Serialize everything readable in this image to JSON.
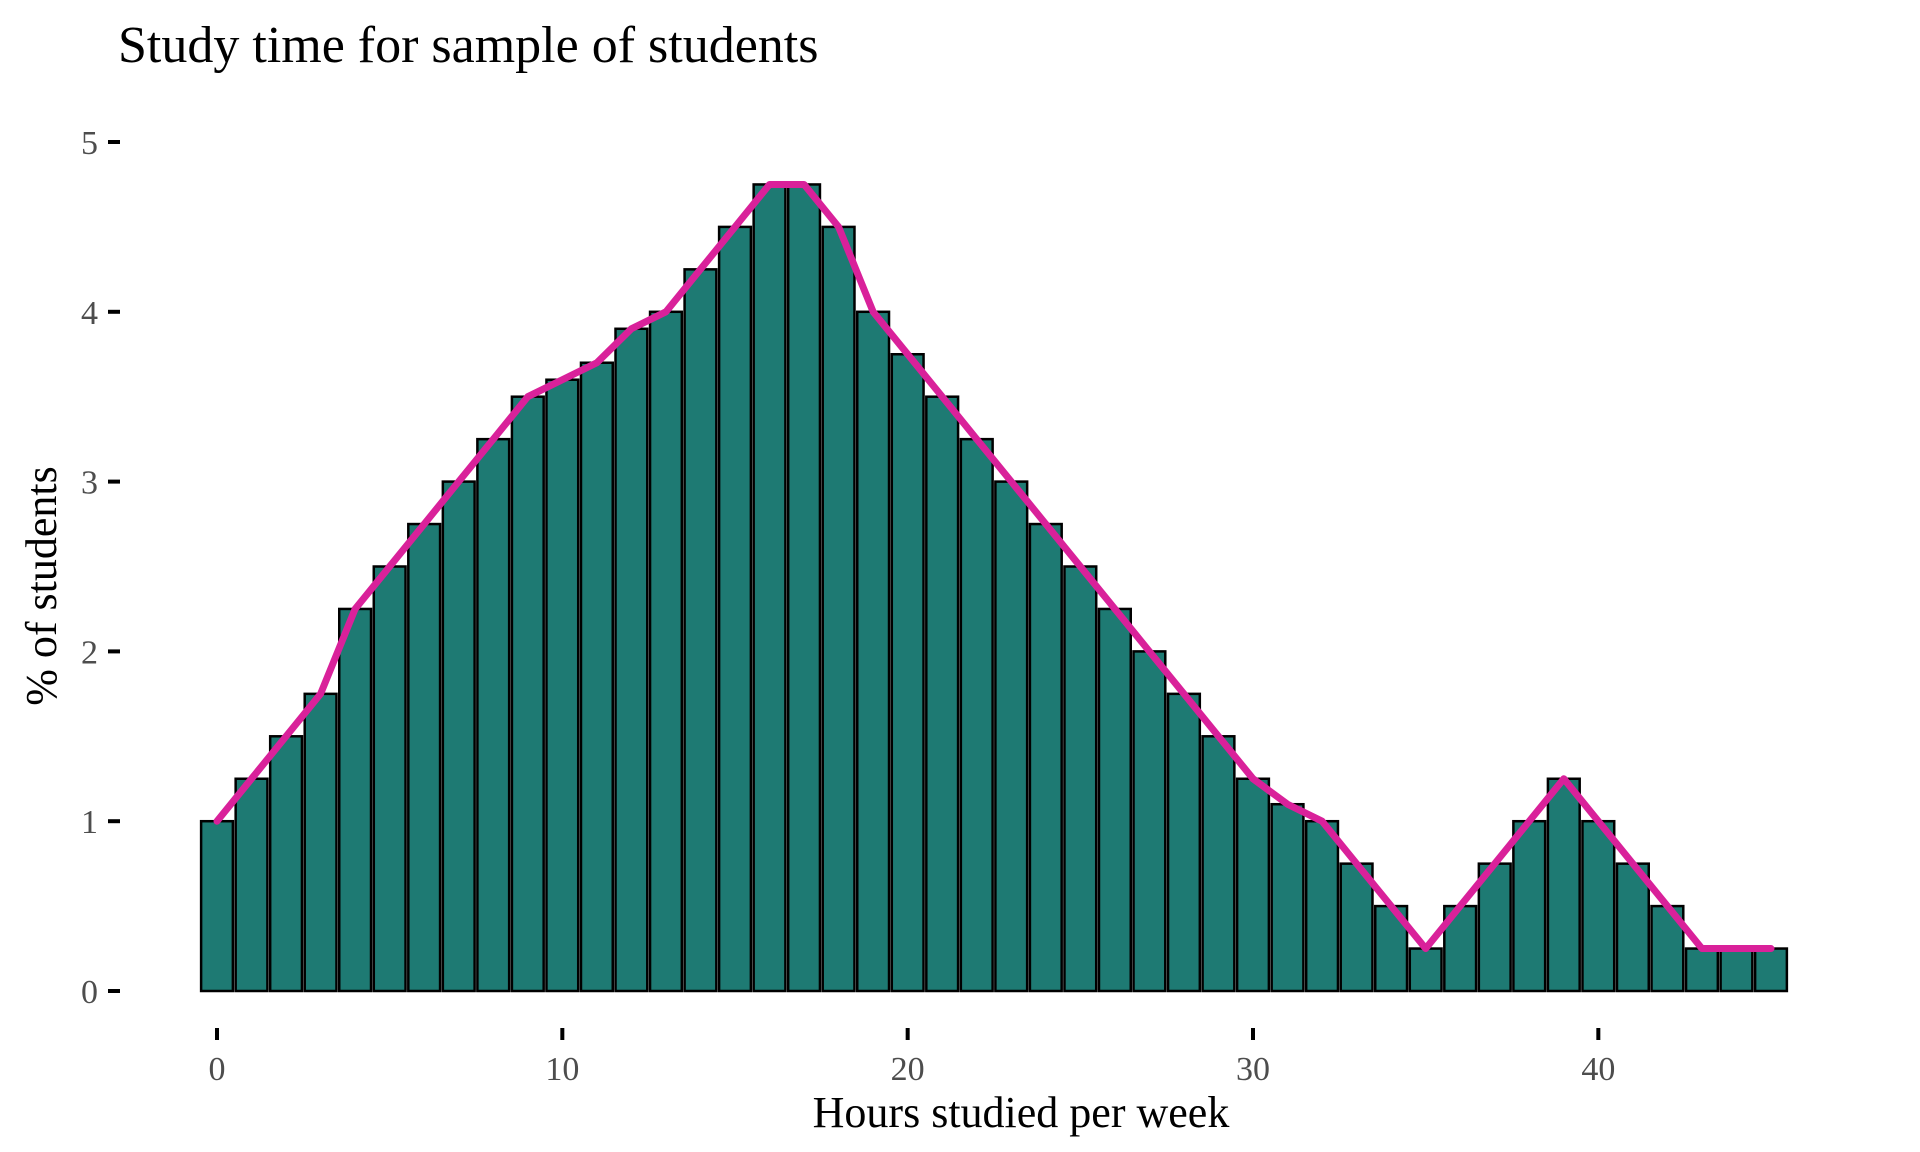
{
  "chart_data": {
    "type": "bar",
    "title": "Study time for sample of students",
    "xlabel": "Hours studied per week",
    "ylabel": "% of students",
    "x_ticks": [
      0,
      10,
      20,
      30,
      40
    ],
    "y_ticks": [
      0,
      1,
      2,
      3,
      4,
      5
    ],
    "xlim": [
      -0.5,
      45.5
    ],
    "ylim": [
      0,
      5
    ],
    "grid": false,
    "legend": "none",
    "colors": {
      "bar_fill": "#1e7a73",
      "bar_outline": "#000000",
      "line": "#d9219a"
    },
    "x": [
      0,
      1,
      2,
      3,
      4,
      5,
      6,
      7,
      8,
      9,
      10,
      11,
      12,
      13,
      14,
      15,
      16,
      17,
      18,
      19,
      20,
      21,
      22,
      23,
      24,
      25,
      26,
      27,
      28,
      29,
      30,
      31,
      32,
      33,
      34,
      35,
      36,
      37,
      38,
      39,
      40,
      41,
      42,
      43,
      44,
      45
    ],
    "values": [
      1.0,
      1.25,
      1.5,
      1.75,
      2.25,
      2.5,
      2.75,
      3.0,
      3.25,
      3.5,
      3.6,
      3.7,
      3.9,
      4.0,
      4.25,
      4.5,
      4.75,
      4.75,
      4.5,
      4.0,
      3.75,
      3.5,
      3.25,
      3.0,
      2.75,
      2.5,
      2.25,
      2.0,
      1.75,
      1.5,
      1.25,
      1.1,
      1.0,
      0.75,
      0.5,
      0.25,
      0.5,
      0.75,
      1.0,
      1.25,
      1.0,
      0.75,
      0.5,
      0.25,
      0.25,
      0.25
    ],
    "line": {
      "x": [
        0,
        1,
        2,
        3,
        4,
        5,
        6,
        7,
        8,
        9,
        10,
        11,
        12,
        13,
        14,
        15,
        16,
        17,
        18,
        19,
        20,
        21,
        22,
        23,
        24,
        25,
        26,
        27,
        28,
        29,
        30,
        31,
        32,
        33,
        34,
        35,
        36,
        37,
        38,
        39,
        40,
        41,
        42,
        43,
        44,
        45
      ],
      "y": [
        1.0,
        1.25,
        1.5,
        1.75,
        2.25,
        2.5,
        2.75,
        3.0,
        3.25,
        3.5,
        3.6,
        3.7,
        3.9,
        4.0,
        4.25,
        4.5,
        4.75,
        4.75,
        4.5,
        4.0,
        3.75,
        3.5,
        3.25,
        3.0,
        2.75,
        2.5,
        2.25,
        2.0,
        1.75,
        1.5,
        1.25,
        1.1,
        1.0,
        0.75,
        0.5,
        0.25,
        0.5,
        0.75,
        1.0,
        1.25,
        1.0,
        0.75,
        0.5,
        0.25,
        0.25,
        0.25
      ]
    }
  }
}
